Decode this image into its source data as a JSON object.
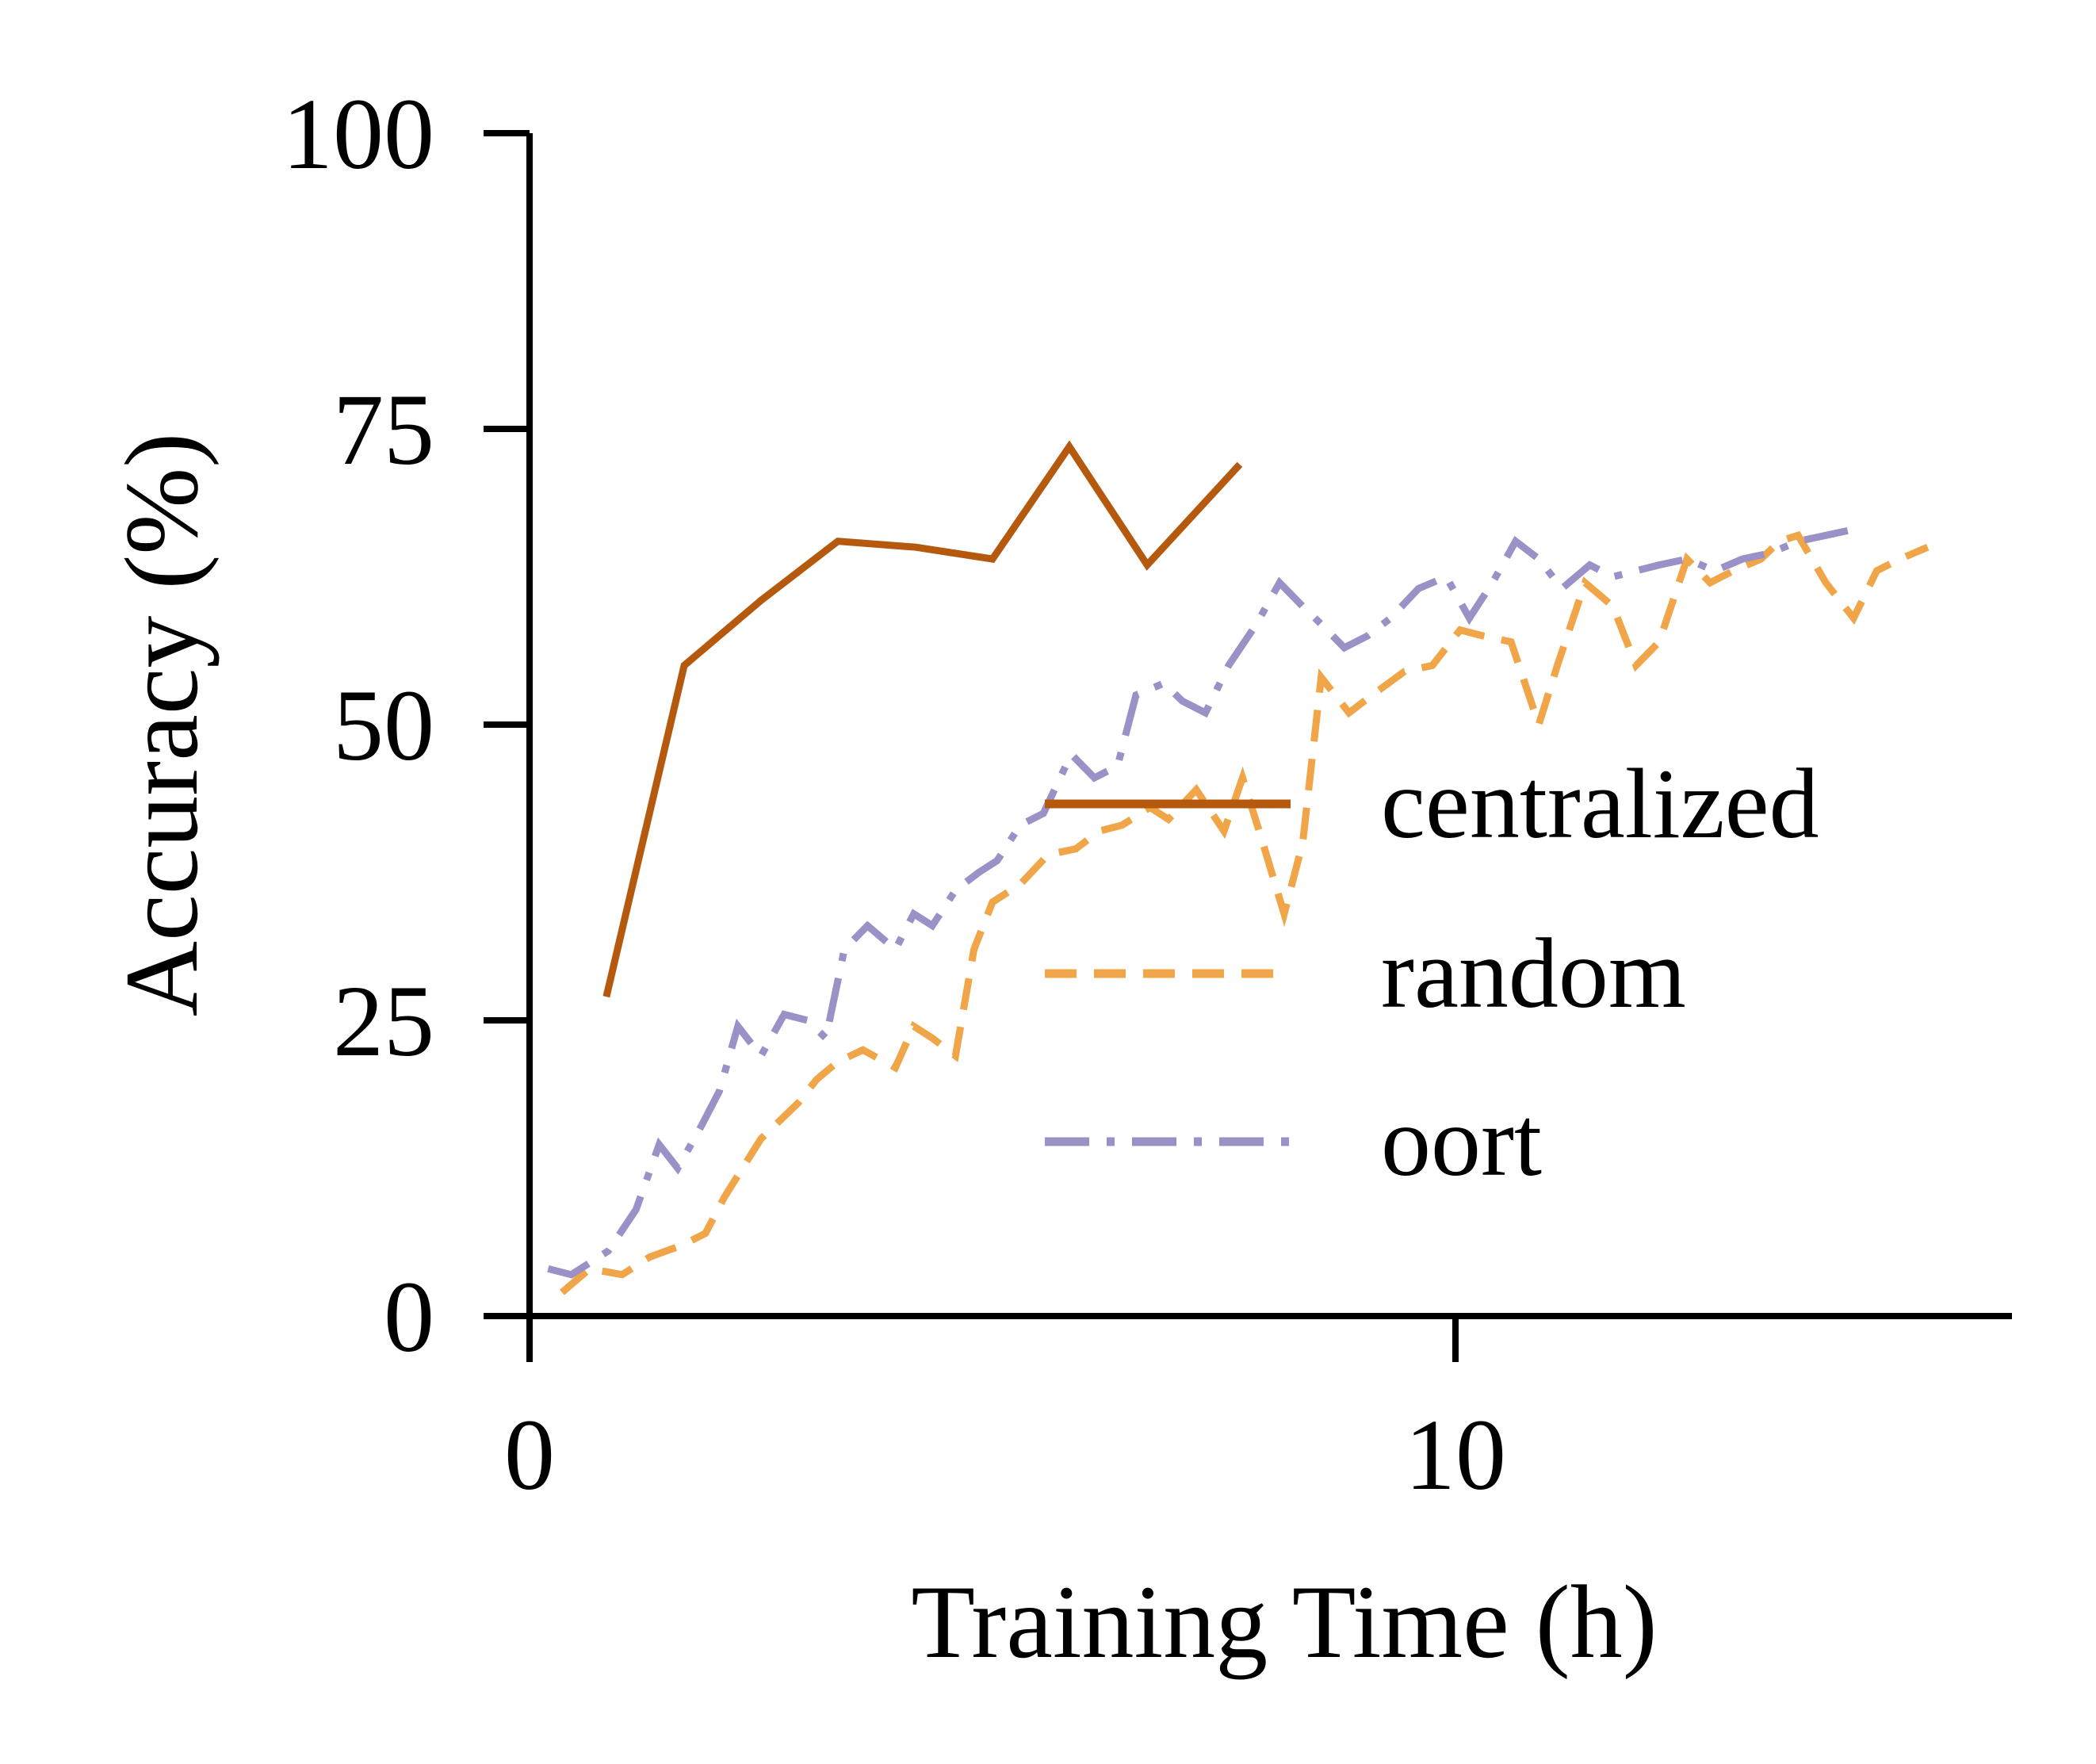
{
  "chart_data": {
    "type": "line",
    "title": "",
    "xlabel": "Training Time (h)",
    "ylabel": "Accuracy (%)",
    "xlim": [
      0,
      16
    ],
    "ylim": [
      0,
      100
    ],
    "xticks": [
      0,
      10
    ],
    "yticks": [
      0,
      25,
      50,
      75,
      100
    ],
    "grid": false,
    "legend_position": "center-right",
    "series": [
      {
        "name": "centralized",
        "color": "#b5590f",
        "style": "solid",
        "x": [
          0.83,
          1.67,
          2.5,
          3.33,
          4.17,
          5.0,
          5.83,
          6.67,
          7.67
        ],
        "y": [
          27,
          55,
          60.5,
          65.5,
          65,
          64,
          73.5,
          63.5,
          72
        ]
      },
      {
        "name": "random",
        "color": "#f0a548",
        "style": "dashed",
        "x": [
          0.35,
          0.65,
          1.0,
          1.3,
          1.65,
          1.9,
          2.1,
          2.3,
          2.5,
          2.9,
          3.1,
          3.33,
          3.6,
          3.95,
          4.15,
          4.35,
          4.6,
          4.8,
          5.0,
          5.3,
          5.6,
          5.9,
          6.15,
          6.4,
          6.7,
          6.9,
          7.2,
          7.5,
          7.7,
          7.9,
          8.15,
          8.35,
          8.55,
          8.85,
          9.1,
          9.45,
          9.75,
          10.05,
          10.3,
          10.6,
          10.9,
          11.1,
          11.4,
          11.7,
          11.95,
          12.2,
          12.5,
          12.75,
          13.0,
          13.3,
          13.5,
          13.7,
          14.0,
          14.3,
          14.55,
          14.8,
          15.1
        ],
        "y": [
          2,
          4,
          3.5,
          5,
          6,
          7,
          10,
          12.5,
          15,
          18,
          20,
          21.5,
          22.5,
          21,
          24.5,
          23.5,
          22,
          31,
          35,
          36.5,
          39,
          39.5,
          41,
          41.5,
          43,
          42,
          44.5,
          41,
          45.5,
          40.5,
          34,
          40,
          54,
          51,
          52.5,
          54.5,
          55,
          58,
          57.5,
          57,
          50,
          55,
          62,
          60,
          55,
          57,
          64,
          62,
          63,
          64,
          65.5,
          66,
          62,
          59,
          63,
          64,
          65
        ]
      },
      {
        "name": "oort",
        "color": "#9b91c6",
        "style": "dashdot",
        "x": [
          0.2,
          0.45,
          0.85,
          1.15,
          1.4,
          1.6,
          1.85,
          2.05,
          2.25,
          2.5,
          2.75,
          3.0,
          3.2,
          3.4,
          3.65,
          3.95,
          4.15,
          4.35,
          4.6,
          4.85,
          5.05,
          5.3,
          5.55,
          5.85,
          6.1,
          6.35,
          6.55,
          6.85,
          7.05,
          7.3,
          7.55,
          7.85,
          8.1,
          8.35,
          8.55,
          8.8,
          9.05,
          9.3,
          9.6,
          9.9,
          10.15,
          10.4,
          10.65,
          10.9,
          11.15,
          11.45,
          11.7,
          11.95,
          12.2,
          12.5,
          12.8,
          13.1,
          13.4,
          13.7,
          14.0,
          14.3
        ],
        "y": [
          4,
          3.5,
          5.5,
          9,
          14.5,
          12.5,
          16,
          19,
          24.5,
          22,
          25.5,
          25,
          23.5,
          31,
          33,
          31,
          34,
          33,
          36,
          37.5,
          38.5,
          41.5,
          42.5,
          47.5,
          45.5,
          46.5,
          52.5,
          53.5,
          52,
          51,
          55,
          58.5,
          62,
          60,
          58.5,
          56.5,
          57.5,
          59,
          61.5,
          62.5,
          59,
          62,
          65.5,
          64,
          61.5,
          63.5,
          62.5,
          63,
          63.5,
          64,
          63,
          64,
          64.5,
          65.5,
          66,
          66.5
        ]
      }
    ]
  }
}
